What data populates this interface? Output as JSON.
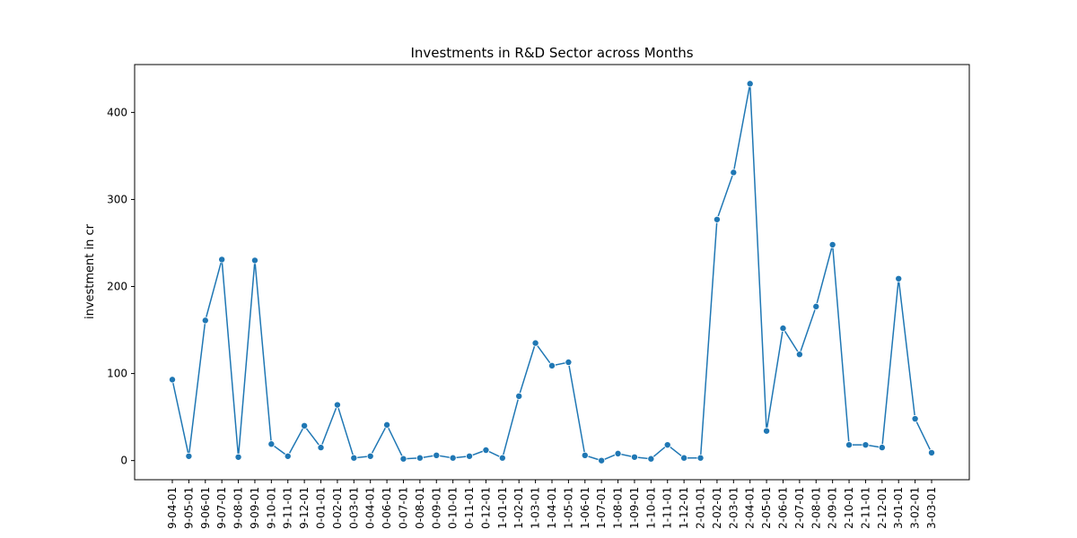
{
  "chart_data": {
    "type": "line",
    "title": "Investments in R&D Sector across Months",
    "xlabel": "",
    "ylabel": "investment in cr",
    "ylim": [
      -22,
      455
    ],
    "yticks": [
      0,
      100,
      200,
      300,
      400
    ],
    "grid": false,
    "legend": "none",
    "line_color": "#1f77b4",
    "categories": [
      "9-04-01",
      "9-05-01",
      "9-06-01",
      "9-07-01",
      "9-08-01",
      "9-09-01",
      "9-10-01",
      "9-11-01",
      "9-12-01",
      "0-01-01",
      "0-02-01",
      "0-03-01",
      "0-04-01",
      "0-06-01",
      "0-07-01",
      "0-08-01",
      "0-09-01",
      "0-10-01",
      "0-11-01",
      "0-12-01",
      "1-01-01",
      "1-02-01",
      "1-03-01",
      "1-04-01",
      "1-05-01",
      "1-06-01",
      "1-07-01",
      "1-08-01",
      "1-09-01",
      "1-10-01",
      "1-11-01",
      "1-12-01",
      "2-01-01",
      "2-02-01",
      "2-03-01",
      "2-04-01",
      "2-05-01",
      "2-06-01",
      "2-07-01",
      "2-08-01",
      "2-09-01",
      "2-10-01",
      "2-11-01",
      "2-12-01",
      "3-01-01",
      "3-02-01",
      "3-03-01"
    ],
    "values": [
      93,
      5,
      161,
      231,
      4,
      230,
      19,
      5,
      40,
      15,
      64,
      3,
      5,
      41,
      2,
      3,
      6,
      3,
      5,
      12,
      3,
      74,
      135,
      109,
      113,
      6,
      0,
      8,
      4,
      2,
      18,
      3,
      3,
      277,
      331,
      433,
      34,
      152,
      122,
      177,
      248,
      18,
      18,
      15,
      209,
      48,
      9
    ]
  }
}
